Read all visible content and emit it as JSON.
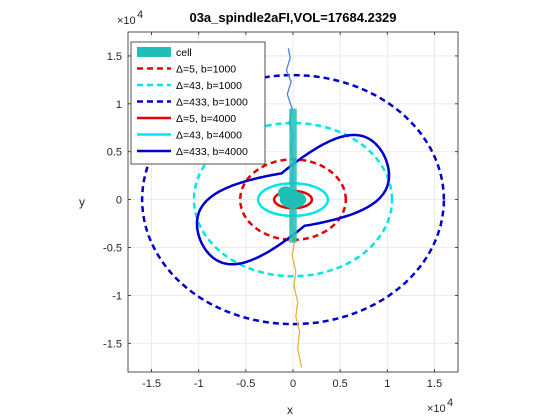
{
  "chart_data": {
    "type": "line",
    "title": "03a_spindle2aFI,VOL=17684.2329",
    "xlabel": "x",
    "ylabel": "y",
    "xlim": [
      -17500,
      17500
    ],
    "ylim": [
      -18000,
      17500
    ],
    "x_ticks": [
      -15000,
      -10000,
      -5000,
      0,
      5000,
      10000,
      15000
    ],
    "y_ticks": [
      -15000,
      -10000,
      -5000,
      0,
      5000,
      10000,
      15000
    ],
    "x_tick_labels": [
      "-1.5",
      "-1",
      "-0.5",
      "0",
      "0.5",
      "1",
      "1.5"
    ],
    "y_tick_labels": [
      "-1.5",
      "-1",
      "-0.5",
      "0",
      "0.5",
      "1",
      "1.5"
    ],
    "x_exponent": "×10",
    "x_exponent_power": "4",
    "y_exponent": "×10",
    "y_exponent_power": "4",
    "grid": true,
    "legend_position": "top-left",
    "series": [
      {
        "name": "cell",
        "color": "#1fbfb8",
        "style": "patch"
      },
      {
        "name": "Δ=5, b=1000",
        "color": "#e60000",
        "style": "dashed",
        "cx": 0,
        "cy": 0,
        "a": 5600,
        "b": 4200
      },
      {
        "name": "Δ=43, b=1000",
        "color": "#00e5e5",
        "style": "dashed",
        "cx": 0,
        "cy": 0,
        "a": 10500,
        "b": 8000
      },
      {
        "name": "Δ=433, b=1000",
        "color": "#0000cc",
        "style": "dashed",
        "cx": 0,
        "cy": 0,
        "a": 16000,
        "b": 13000
      },
      {
        "name": "Δ=5, b=4000",
        "color": "#e60000",
        "style": "solid",
        "cx": 0,
        "cy": 0,
        "a": 2000,
        "b": 900
      },
      {
        "name": "Δ=43, b=4000",
        "color": "#00e5e5",
        "style": "solid",
        "cx": 0,
        "cy": 0,
        "a": 3700,
        "b": 1700
      },
      {
        "name": "Δ=433, b=4000",
        "color": "#0000cc",
        "style": "solid-peanut"
      }
    ]
  }
}
